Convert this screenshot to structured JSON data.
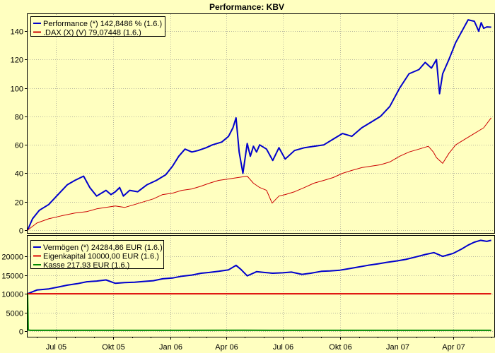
{
  "page": {
    "background": "#ffffc0",
    "plot_background": "#ffffc0"
  },
  "chart_data": [
    {
      "type": "line",
      "title": "Performance: KBV",
      "xlabel": "",
      "ylabel": "",
      "ylim": [
        -2,
        152
      ],
      "yticks": [
        0,
        20,
        40,
        60,
        80,
        100,
        120,
        140
      ],
      "grid": true,
      "legend_position": "top-left",
      "legend": [
        {
          "name": "Performance (*) 142,8486 % (1.6.)",
          "color": "#0000cc"
        },
        {
          "name": ".DAX (X) (V) 79,07448 (1.6.)",
          "color": "#cc0000"
        }
      ],
      "series": [
        {
          "name": "Performance (*) 142,8486 % (1.6.)",
          "color": "#0000cc",
          "x": [
            "2005-05-17",
            "2005-05-25",
            "2005-06-05",
            "2005-06-20",
            "2005-07-05",
            "2005-07-20",
            "2005-08-01",
            "2005-08-15",
            "2005-08-25",
            "2005-09-05",
            "2005-09-20",
            "2005-09-28",
            "2005-10-05",
            "2005-10-12",
            "2005-10-18",
            "2005-10-28",
            "2005-11-10",
            "2005-11-25",
            "2005-12-10",
            "2005-12-25",
            "2006-01-05",
            "2006-01-15",
            "2006-01-25",
            "2006-02-05",
            "2006-02-15",
            "2006-02-28",
            "2006-03-10",
            "2006-03-25",
            "2006-04-05",
            "2006-04-12",
            "2006-04-17",
            "2006-04-22",
            "2006-04-28",
            "2006-05-05",
            "2006-05-10",
            "2006-05-15",
            "2006-05-20",
            "2006-05-25",
            "2006-06-05",
            "2006-06-15",
            "2006-06-25",
            "2006-07-05",
            "2006-07-20",
            "2006-08-05",
            "2006-08-20",
            "2006-09-05",
            "2006-09-20",
            "2006-10-05",
            "2006-10-20",
            "2006-11-05",
            "2006-11-20",
            "2006-12-05",
            "2006-12-20",
            "2007-01-05",
            "2007-01-20",
            "2007-02-05",
            "2007-02-15",
            "2007-02-25",
            "2007-03-05",
            "2007-03-10",
            "2007-03-15",
            "2007-03-25",
            "2007-04-05",
            "2007-04-15",
            "2007-04-25",
            "2007-05-05",
            "2007-05-12",
            "2007-05-16",
            "2007-05-20",
            "2007-05-25",
            "2007-06-01"
          ],
          "values": [
            0,
            8,
            14,
            18,
            25,
            32,
            35,
            38,
            30,
            24,
            28,
            25,
            27,
            30,
            24,
            28,
            27,
            32,
            35,
            39,
            45,
            52,
            57,
            55,
            56,
            58,
            60,
            62,
            66,
            72,
            79,
            55,
            40,
            61,
            52,
            59,
            55,
            60,
            57,
            49,
            58,
            50,
            56,
            58,
            59,
            60,
            64,
            68,
            66,
            72,
            76,
            80,
            87,
            100,
            110,
            113,
            118,
            114,
            120,
            96,
            110,
            120,
            132,
            140,
            148,
            147,
            140,
            146,
            142,
            143,
            142.8
          ]
        },
        {
          "name": ".DAX (X) (V) 79,07448 (1.6.)",
          "color": "#cc0000",
          "x": [
            "2005-05-17",
            "2005-06-01",
            "2005-06-20",
            "2005-07-10",
            "2005-08-01",
            "2005-08-20",
            "2005-09-05",
            "2005-09-20",
            "2005-10-05",
            "2005-10-20",
            "2005-11-05",
            "2005-11-20",
            "2005-12-05",
            "2005-12-20",
            "2006-01-05",
            "2006-01-20",
            "2006-02-05",
            "2006-02-20",
            "2006-03-05",
            "2006-03-20",
            "2006-04-05",
            "2006-04-20",
            "2006-05-05",
            "2006-05-15",
            "2006-05-25",
            "2006-06-05",
            "2006-06-14",
            "2006-06-25",
            "2006-07-05",
            "2006-07-20",
            "2006-08-05",
            "2006-08-20",
            "2006-09-05",
            "2006-09-20",
            "2006-10-05",
            "2006-10-20",
            "2006-11-05",
            "2006-11-20",
            "2006-12-05",
            "2006-12-20",
            "2007-01-05",
            "2007-01-20",
            "2007-02-05",
            "2007-02-20",
            "2007-02-28",
            "2007-03-05",
            "2007-03-15",
            "2007-03-25",
            "2007-04-05",
            "2007-04-20",
            "2007-05-05",
            "2007-05-20",
            "2007-06-01"
          ],
          "values": [
            0,
            5,
            8,
            10,
            12,
            13,
            15,
            16,
            17,
            16,
            18,
            20,
            22,
            25,
            26,
            28,
            29,
            31,
            33,
            35,
            36,
            37,
            38,
            33,
            30,
            28,
            19,
            24,
            25,
            27,
            30,
            33,
            35,
            37,
            40,
            42,
            44,
            45,
            46,
            48,
            52,
            55,
            57,
            59,
            55,
            51,
            47,
            54,
            60,
            64,
            68,
            72,
            79
          ]
        }
      ]
    },
    {
      "type": "line",
      "title": "",
      "xlabel": "",
      "ylabel": "",
      "ylim": [
        -1500,
        25500
      ],
      "yticks": [
        0,
        5000,
        10000,
        15000,
        20000
      ],
      "xticks": [
        "Jul 05",
        "Okt 05",
        "Jan 06",
        "Apr 06",
        "Jul 06",
        "Okt 06",
        "Jan 07",
        "Apr 07"
      ],
      "grid": true,
      "legend_position": "top-left",
      "legend": [
        {
          "name": "Vermögen (*) 24284,86 EUR (1.6.)",
          "color": "#0000cc"
        },
        {
          "name": "Eigenkapital 10000,00 EUR (1.6.)",
          "color": "#dd0000"
        },
        {
          "name": "Kasse 217,93 EUR (1.6.)",
          "color": "#008800"
        }
      ],
      "series": [
        {
          "name": "Vermögen (*) 24284,86 EUR (1.6.)",
          "color": "#0000cc",
          "x": [
            "2005-05-17",
            "2005-06-01",
            "2005-06-20",
            "2005-07-05",
            "2005-07-20",
            "2005-08-05",
            "2005-08-20",
            "2005-09-05",
            "2005-09-20",
            "2005-10-05",
            "2005-10-20",
            "2005-11-05",
            "2005-11-20",
            "2005-12-05",
            "2005-12-20",
            "2006-01-05",
            "2006-01-20",
            "2006-02-05",
            "2006-02-20",
            "2006-03-05",
            "2006-03-20",
            "2006-04-05",
            "2006-04-17",
            "2006-04-25",
            "2006-05-05",
            "2006-05-12",
            "2006-05-20",
            "2006-06-01",
            "2006-06-15",
            "2006-07-01",
            "2006-07-15",
            "2006-08-01",
            "2006-08-15",
            "2006-09-01",
            "2006-09-15",
            "2006-10-01",
            "2006-10-15",
            "2006-11-01",
            "2006-11-15",
            "2006-12-01",
            "2006-12-15",
            "2007-01-01",
            "2007-01-15",
            "2007-02-01",
            "2007-02-15",
            "2007-03-01",
            "2007-03-15",
            "2007-04-01",
            "2007-04-15",
            "2007-04-25",
            "2007-05-05",
            "2007-05-15",
            "2007-05-25",
            "2007-06-01"
          ],
          "values": [
            10000,
            11000,
            11300,
            11800,
            12300,
            12700,
            13200,
            13400,
            13700,
            12800,
            13000,
            13100,
            13300,
            13500,
            14000,
            14200,
            14700,
            15000,
            15500,
            15700,
            16000,
            16400,
            17600,
            16500,
            14800,
            15300,
            15900,
            15700,
            15500,
            15600,
            15800,
            15200,
            15500,
            16000,
            16100,
            16300,
            16700,
            17200,
            17600,
            18000,
            18400,
            18800,
            19200,
            19900,
            20500,
            21000,
            20000,
            20800,
            22000,
            23000,
            23800,
            24300,
            24000,
            24284.86
          ]
        },
        {
          "name": "Eigenkapital 10000,00 EUR (1.6.)",
          "color": "#dd0000",
          "x": [
            "2005-05-17",
            "2007-06-01"
          ],
          "values": [
            10000,
            10000
          ]
        },
        {
          "name": "Kasse 217,93 EUR (1.6.)",
          "color": "#008800",
          "x": [
            "2005-05-17",
            "2005-05-18",
            "2005-05-22",
            "2006-05-01",
            "2006-07-01",
            "2007-05-01",
            "2007-06-01"
          ],
          "values": [
            10000,
            300,
            220,
            230,
            210,
            220,
            217.93
          ]
        }
      ]
    }
  ]
}
